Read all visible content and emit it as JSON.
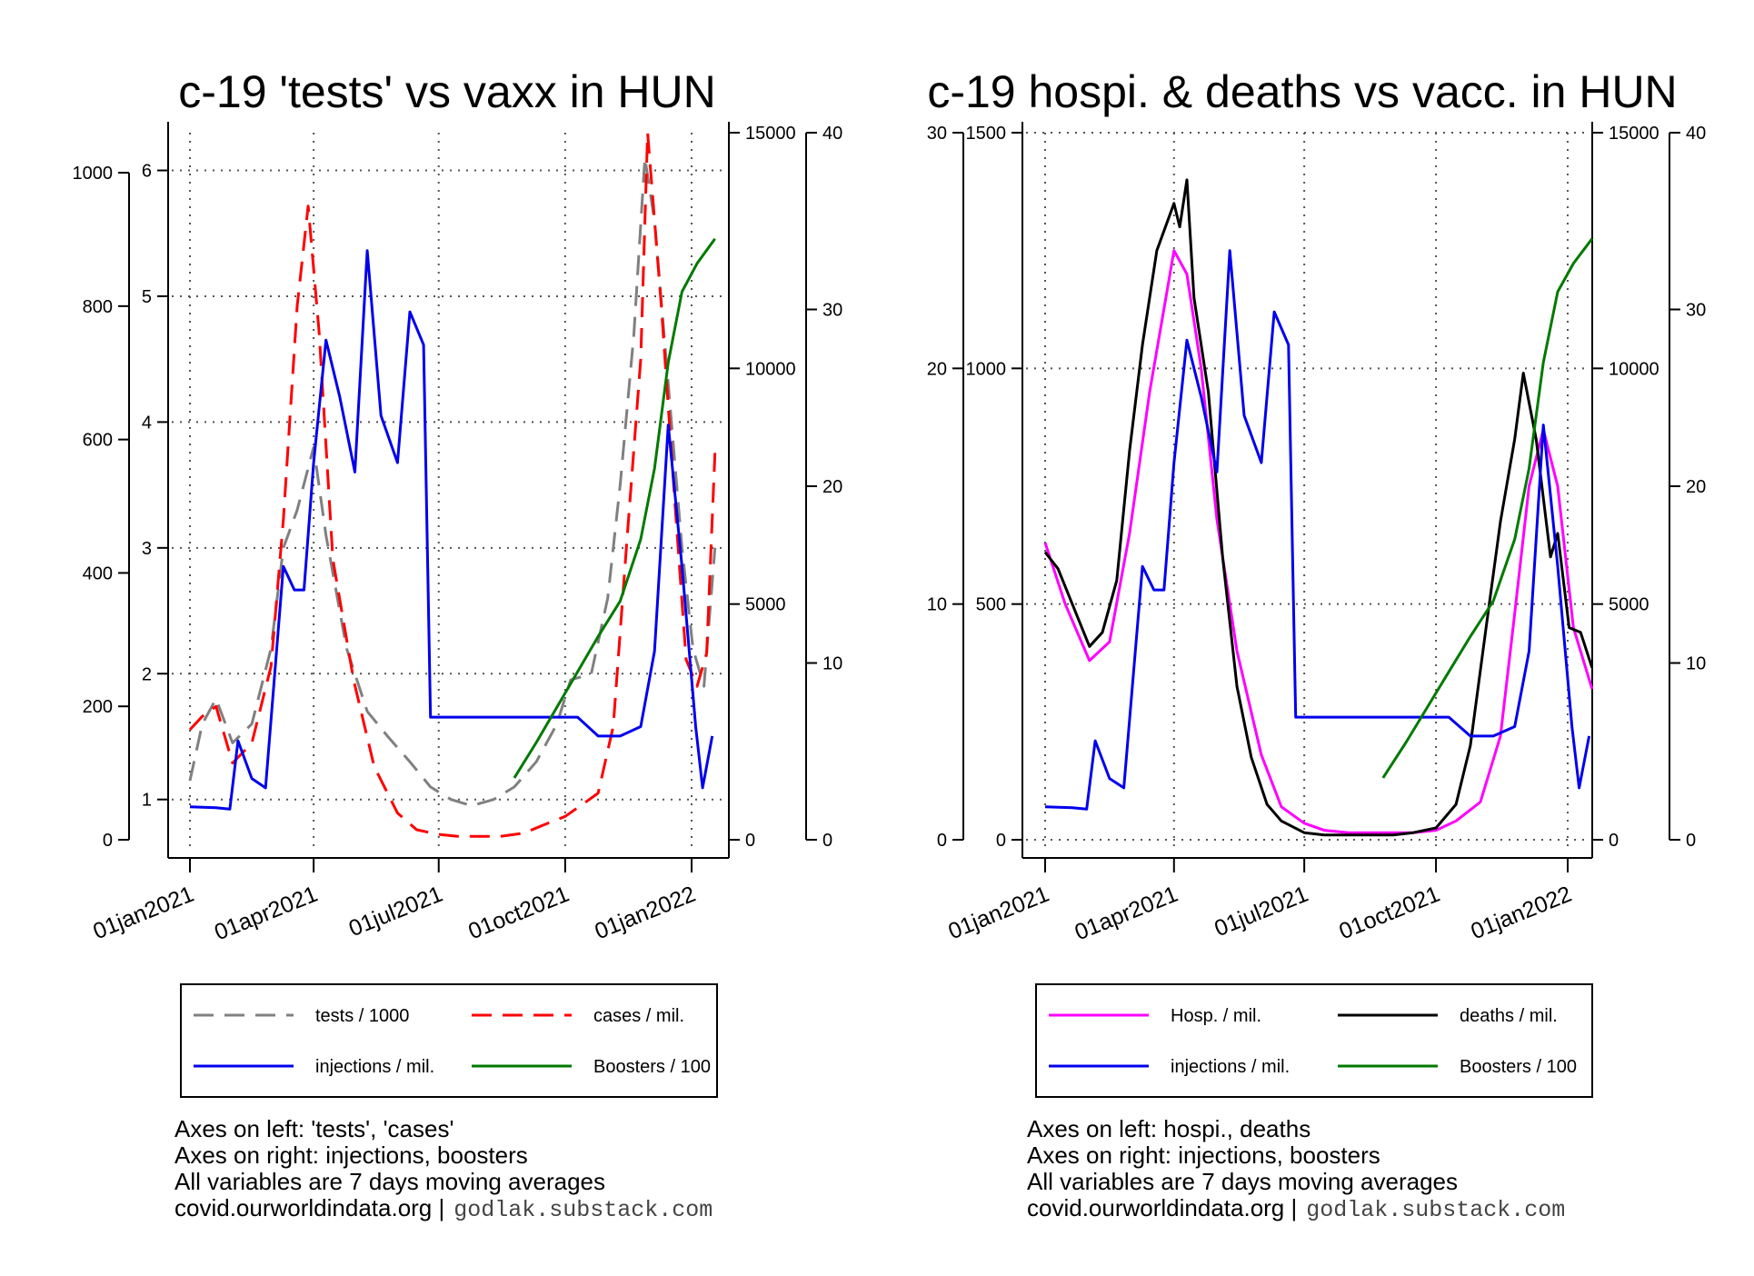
{
  "date_ticks": [
    "01jan2021",
    "01apr2021",
    "01jul2021",
    "01oct2021",
    "01jan2022"
  ],
  "colors": {
    "tests": "#808080",
    "cases": "#ff0000",
    "injections": "#0000ee",
    "boosters": "#007a00",
    "hosp": "#ff00ff",
    "deaths": "#000000"
  },
  "chart_data": [
    {
      "type": "line",
      "title": "c-19 'tests' vs vaxx in HUN",
      "x_range": [
        "2021-01-01",
        "2022-01-20"
      ],
      "axes": {
        "left_outer": {
          "ticks": [
            "0",
            "200",
            "400",
            "600",
            "800",
            "1000"
          ],
          "range": [
            0,
            1060
          ]
        },
        "left_inner": {
          "ticks": [
            "1",
            "2",
            "3",
            "4",
            "5",
            "6"
          ],
          "range": [
            0.68,
            6.3
          ]
        },
        "right_inner": {
          "ticks": [
            "0",
            "5000",
            "10000",
            "15000"
          ],
          "range": [
            0,
            15000
          ]
        },
        "right_outer": {
          "ticks": [
            "0",
            "10",
            "20",
            "30",
            "40"
          ],
          "range": [
            0,
            40
          ]
        }
      },
      "series": [
        {
          "name": "tests / 1000",
          "axis": "left_inner",
          "style": "dashed",
          "color": "#808080",
          "x": [
            "2021-01-01",
            "2021-01-10",
            "2021-01-20",
            "2021-02-01",
            "2021-02-15",
            "2021-03-01",
            "2021-03-10",
            "2021-03-20",
            "2021-04-01",
            "2021-04-10",
            "2021-04-25",
            "2021-05-10",
            "2021-05-25",
            "2021-06-10",
            "2021-06-25",
            "2021-07-10",
            "2021-07-25",
            "2021-08-10",
            "2021-08-25",
            "2021-09-10",
            "2021-09-25",
            "2021-10-05",
            "2021-10-20",
            "2021-11-01",
            "2021-11-10",
            "2021-11-20",
            "2021-11-28",
            "2021-12-05",
            "2021-12-15",
            "2021-12-25",
            "2022-01-02",
            "2022-01-10",
            "2022-01-18"
          ],
          "values": [
            1.15,
            1.6,
            1.8,
            1.45,
            1.6,
            2.2,
            3.0,
            3.3,
            3.8,
            3.1,
            2.2,
            1.7,
            1.5,
            1.3,
            1.1,
            1.0,
            0.95,
            1.0,
            1.1,
            1.3,
            1.6,
            1.95,
            2.0,
            2.6,
            3.5,
            4.7,
            6.1,
            5.6,
            4.3,
            3.0,
            2.2,
            1.9,
            3.0
          ]
        },
        {
          "name": "cases / mil.",
          "axis": "left_outer",
          "style": "dashed",
          "color": "#ff0000",
          "x": [
            "2021-01-01",
            "2021-01-10",
            "2021-01-20",
            "2021-02-01",
            "2021-02-15",
            "2021-03-01",
            "2021-03-10",
            "2021-03-20",
            "2021-03-28",
            "2021-04-05",
            "2021-04-15",
            "2021-04-30",
            "2021-05-15",
            "2021-06-01",
            "2021-06-15",
            "2021-07-01",
            "2021-07-15",
            "2021-08-01",
            "2021-08-15",
            "2021-09-01",
            "2021-09-15",
            "2021-10-01",
            "2021-10-15",
            "2021-10-25",
            "2021-11-05",
            "2021-11-15",
            "2021-11-25",
            "2021-11-30",
            "2021-12-10",
            "2021-12-20",
            "2021-12-28",
            "2022-01-05",
            "2022-01-12",
            "2022-01-18"
          ],
          "values": [
            165,
            185,
            200,
            115,
            145,
            260,
            480,
            800,
            950,
            760,
            420,
            240,
            110,
            40,
            15,
            8,
            5,
            5,
            5,
            10,
            22,
            35,
            55,
            70,
            170,
            450,
            720,
            1060,
            800,
            500,
            270,
            230,
            280,
            580
          ]
        },
        {
          "name": "injections / mil.",
          "axis": "right_inner",
          "style": "solid",
          "color": "#0000ee",
          "x": [
            "2021-01-01",
            "2021-01-20",
            "2021-01-30",
            "2021-02-05",
            "2021-02-15",
            "2021-02-25",
            "2021-03-10",
            "2021-03-18",
            "2021-03-25",
            "2021-04-01",
            "2021-04-10",
            "2021-04-20",
            "2021-05-01",
            "2021-05-10",
            "2021-05-20",
            "2021-06-01",
            "2021-06-10",
            "2021-06-20",
            "2021-06-25",
            "2021-07-15",
            "2021-08-15",
            "2021-09-15",
            "2021-09-30",
            "2021-10-10",
            "2021-10-25",
            "2021-11-10",
            "2021-11-25",
            "2021-12-05",
            "2021-12-15",
            "2021-12-25",
            "2022-01-04",
            "2022-01-09",
            "2022-01-16"
          ],
          "values": [
            700,
            680,
            650,
            2100,
            1300,
            1100,
            5800,
            5300,
            5300,
            8000,
            10600,
            9400,
            7800,
            12500,
            9000,
            8000,
            11200,
            10500,
            2600,
            2600,
            2600,
            2600,
            2600,
            2600,
            2200,
            2200,
            2400,
            4000,
            8800,
            5800,
            2400,
            1100,
            2200
          ]
        },
        {
          "name": "Boosters / 100",
          "axis": "right_outer",
          "style": "solid",
          "color": "#007a00",
          "x": [
            "2021-08-25",
            "2021-09-10",
            "2021-09-25",
            "2021-10-10",
            "2021-10-25",
            "2021-11-10",
            "2021-11-25",
            "2021-12-05",
            "2021-12-15",
            "2021-12-25",
            "2022-01-05",
            "2022-01-18"
          ],
          "values": [
            3.5,
            5.5,
            7.5,
            9.5,
            11.5,
            13.5,
            17,
            21,
            27,
            31,
            32.6,
            34
          ]
        }
      ],
      "legend": [
        "tests / 1000",
        "cases / mil.",
        "injections / mil.",
        "Boosters / 100"
      ],
      "notes": [
        "Axes on left: 'tests', 'cases'",
        "Axes on right: injections, boosters",
        "All variables are 7 days moving averages",
        "covid.ourworldindata.org |",
        "godlak.substack.com"
      ]
    },
    {
      "type": "line",
      "title": "c-19 hospi. & deaths vs vacc. in HUN",
      "x_range": [
        "2021-01-01",
        "2022-01-20"
      ],
      "axes": {
        "left_outer": {
          "ticks": [
            "0",
            "10",
            "20",
            "30"
          ],
          "range": [
            0,
            30
          ]
        },
        "left_inner": {
          "ticks": [
            "0",
            "500",
            "1000",
            "1500"
          ],
          "range": [
            0,
            1500
          ]
        },
        "right_inner": {
          "ticks": [
            "0",
            "5000",
            "10000",
            "15000"
          ],
          "range": [
            0,
            15000
          ]
        },
        "right_outer": {
          "ticks": [
            "0",
            "10",
            "20",
            "30",
            "40"
          ],
          "range": [
            0,
            40
          ]
        }
      },
      "series": [
        {
          "name": "Hosp. / mil.",
          "axis": "left_inner",
          "style": "solid",
          "color": "#ff00ff",
          "x": [
            "2021-01-01",
            "2021-01-15",
            "2021-02-01",
            "2021-02-15",
            "2021-03-01",
            "2021-03-15",
            "2021-04-01",
            "2021-04-10",
            "2021-04-20",
            "2021-05-01",
            "2021-05-15",
            "2021-06-01",
            "2021-06-15",
            "2021-07-01",
            "2021-07-15",
            "2021-08-01",
            "2021-08-15",
            "2021-09-01",
            "2021-09-15",
            "2021-10-01",
            "2021-10-15",
            "2021-11-01",
            "2021-11-15",
            "2021-11-25",
            "2021-12-05",
            "2021-12-15",
            "2021-12-25",
            "2022-01-05",
            "2022-01-18"
          ],
          "values": [
            630,
            500,
            380,
            420,
            650,
            950,
            1250,
            1200,
            1000,
            680,
            400,
            180,
            70,
            35,
            20,
            15,
            15,
            15,
            15,
            20,
            40,
            80,
            220,
            480,
            750,
            870,
            750,
            450,
            320
          ]
        },
        {
          "name": "deaths / mil.",
          "axis": "left_outer",
          "style": "solid",
          "color": "#000000",
          "x": [
            "2021-01-01",
            "2021-01-10",
            "2021-01-20",
            "2021-02-01",
            "2021-02-10",
            "2021-02-20",
            "2021-03-01",
            "2021-03-10",
            "2021-03-20",
            "2021-04-01",
            "2021-04-05",
            "2021-04-10",
            "2021-04-15",
            "2021-04-25",
            "2021-05-05",
            "2021-05-15",
            "2021-05-25",
            "2021-06-05",
            "2021-06-15",
            "2021-07-01",
            "2021-07-15",
            "2021-08-01",
            "2021-08-15",
            "2021-09-01",
            "2021-09-15",
            "2021-10-01",
            "2021-10-15",
            "2021-10-25",
            "2021-11-05",
            "2021-11-15",
            "2021-11-25",
            "2021-12-01",
            "2021-12-10",
            "2021-12-20",
            "2021-12-25",
            "2022-01-02",
            "2022-01-10",
            "2022-01-18"
          ],
          "values": [
            12.2,
            11.5,
            10,
            8.2,
            8.8,
            11,
            16.5,
            21,
            25,
            27,
            26,
            28,
            23,
            19,
            12,
            6.5,
            3.5,
            1.5,
            0.8,
            0.3,
            0.2,
            0.2,
            0.2,
            0.2,
            0.3,
            0.5,
            1.5,
            4,
            9,
            13.5,
            17,
            19.8,
            17,
            12,
            13,
            9,
            8.8,
            7.3
          ]
        },
        {
          "name": "injections / mil.",
          "axis": "right_inner",
          "style": "solid",
          "color": "#0000ee",
          "x": [
            "2021-01-01",
            "2021-01-20",
            "2021-01-30",
            "2021-02-05",
            "2021-02-15",
            "2021-02-25",
            "2021-03-10",
            "2021-03-18",
            "2021-03-25",
            "2021-04-01",
            "2021-04-10",
            "2021-04-20",
            "2021-05-01",
            "2021-05-10",
            "2021-05-20",
            "2021-06-01",
            "2021-06-10",
            "2021-06-20",
            "2021-06-25",
            "2021-07-15",
            "2021-08-15",
            "2021-09-15",
            "2021-09-30",
            "2021-10-10",
            "2021-10-25",
            "2021-11-10",
            "2021-11-25",
            "2021-12-05",
            "2021-12-15",
            "2021-12-25",
            "2022-01-04",
            "2022-01-09",
            "2022-01-16"
          ],
          "values": [
            700,
            680,
            650,
            2100,
            1300,
            1100,
            5800,
            5300,
            5300,
            8000,
            10600,
            9400,
            7800,
            12500,
            9000,
            8000,
            11200,
            10500,
            2600,
            2600,
            2600,
            2600,
            2600,
            2600,
            2200,
            2200,
            2400,
            4000,
            8800,
            5800,
            2400,
            1100,
            2200
          ]
        },
        {
          "name": "Boosters / 100",
          "axis": "right_outer",
          "style": "solid",
          "color": "#007a00",
          "x": [
            "2021-08-25",
            "2021-09-10",
            "2021-09-25",
            "2021-10-10",
            "2021-10-25",
            "2021-11-10",
            "2021-11-25",
            "2021-12-05",
            "2021-12-15",
            "2021-12-25",
            "2022-01-05",
            "2022-01-18"
          ],
          "values": [
            3.5,
            5.5,
            7.5,
            9.5,
            11.5,
            13.5,
            17,
            21,
            27,
            31,
            32.6,
            34
          ]
        }
      ],
      "legend": [
        "Hosp. / mil.",
        "deaths / mil.",
        "injections / mil.",
        "Boosters / 100"
      ],
      "notes": [
        "Axes on left: hospi., deaths",
        "Axes on right: injections, boosters",
        "All variables are 7 days moving averages",
        "covid.ourworldindata.org |",
        "godlak.substack.com"
      ]
    }
  ]
}
